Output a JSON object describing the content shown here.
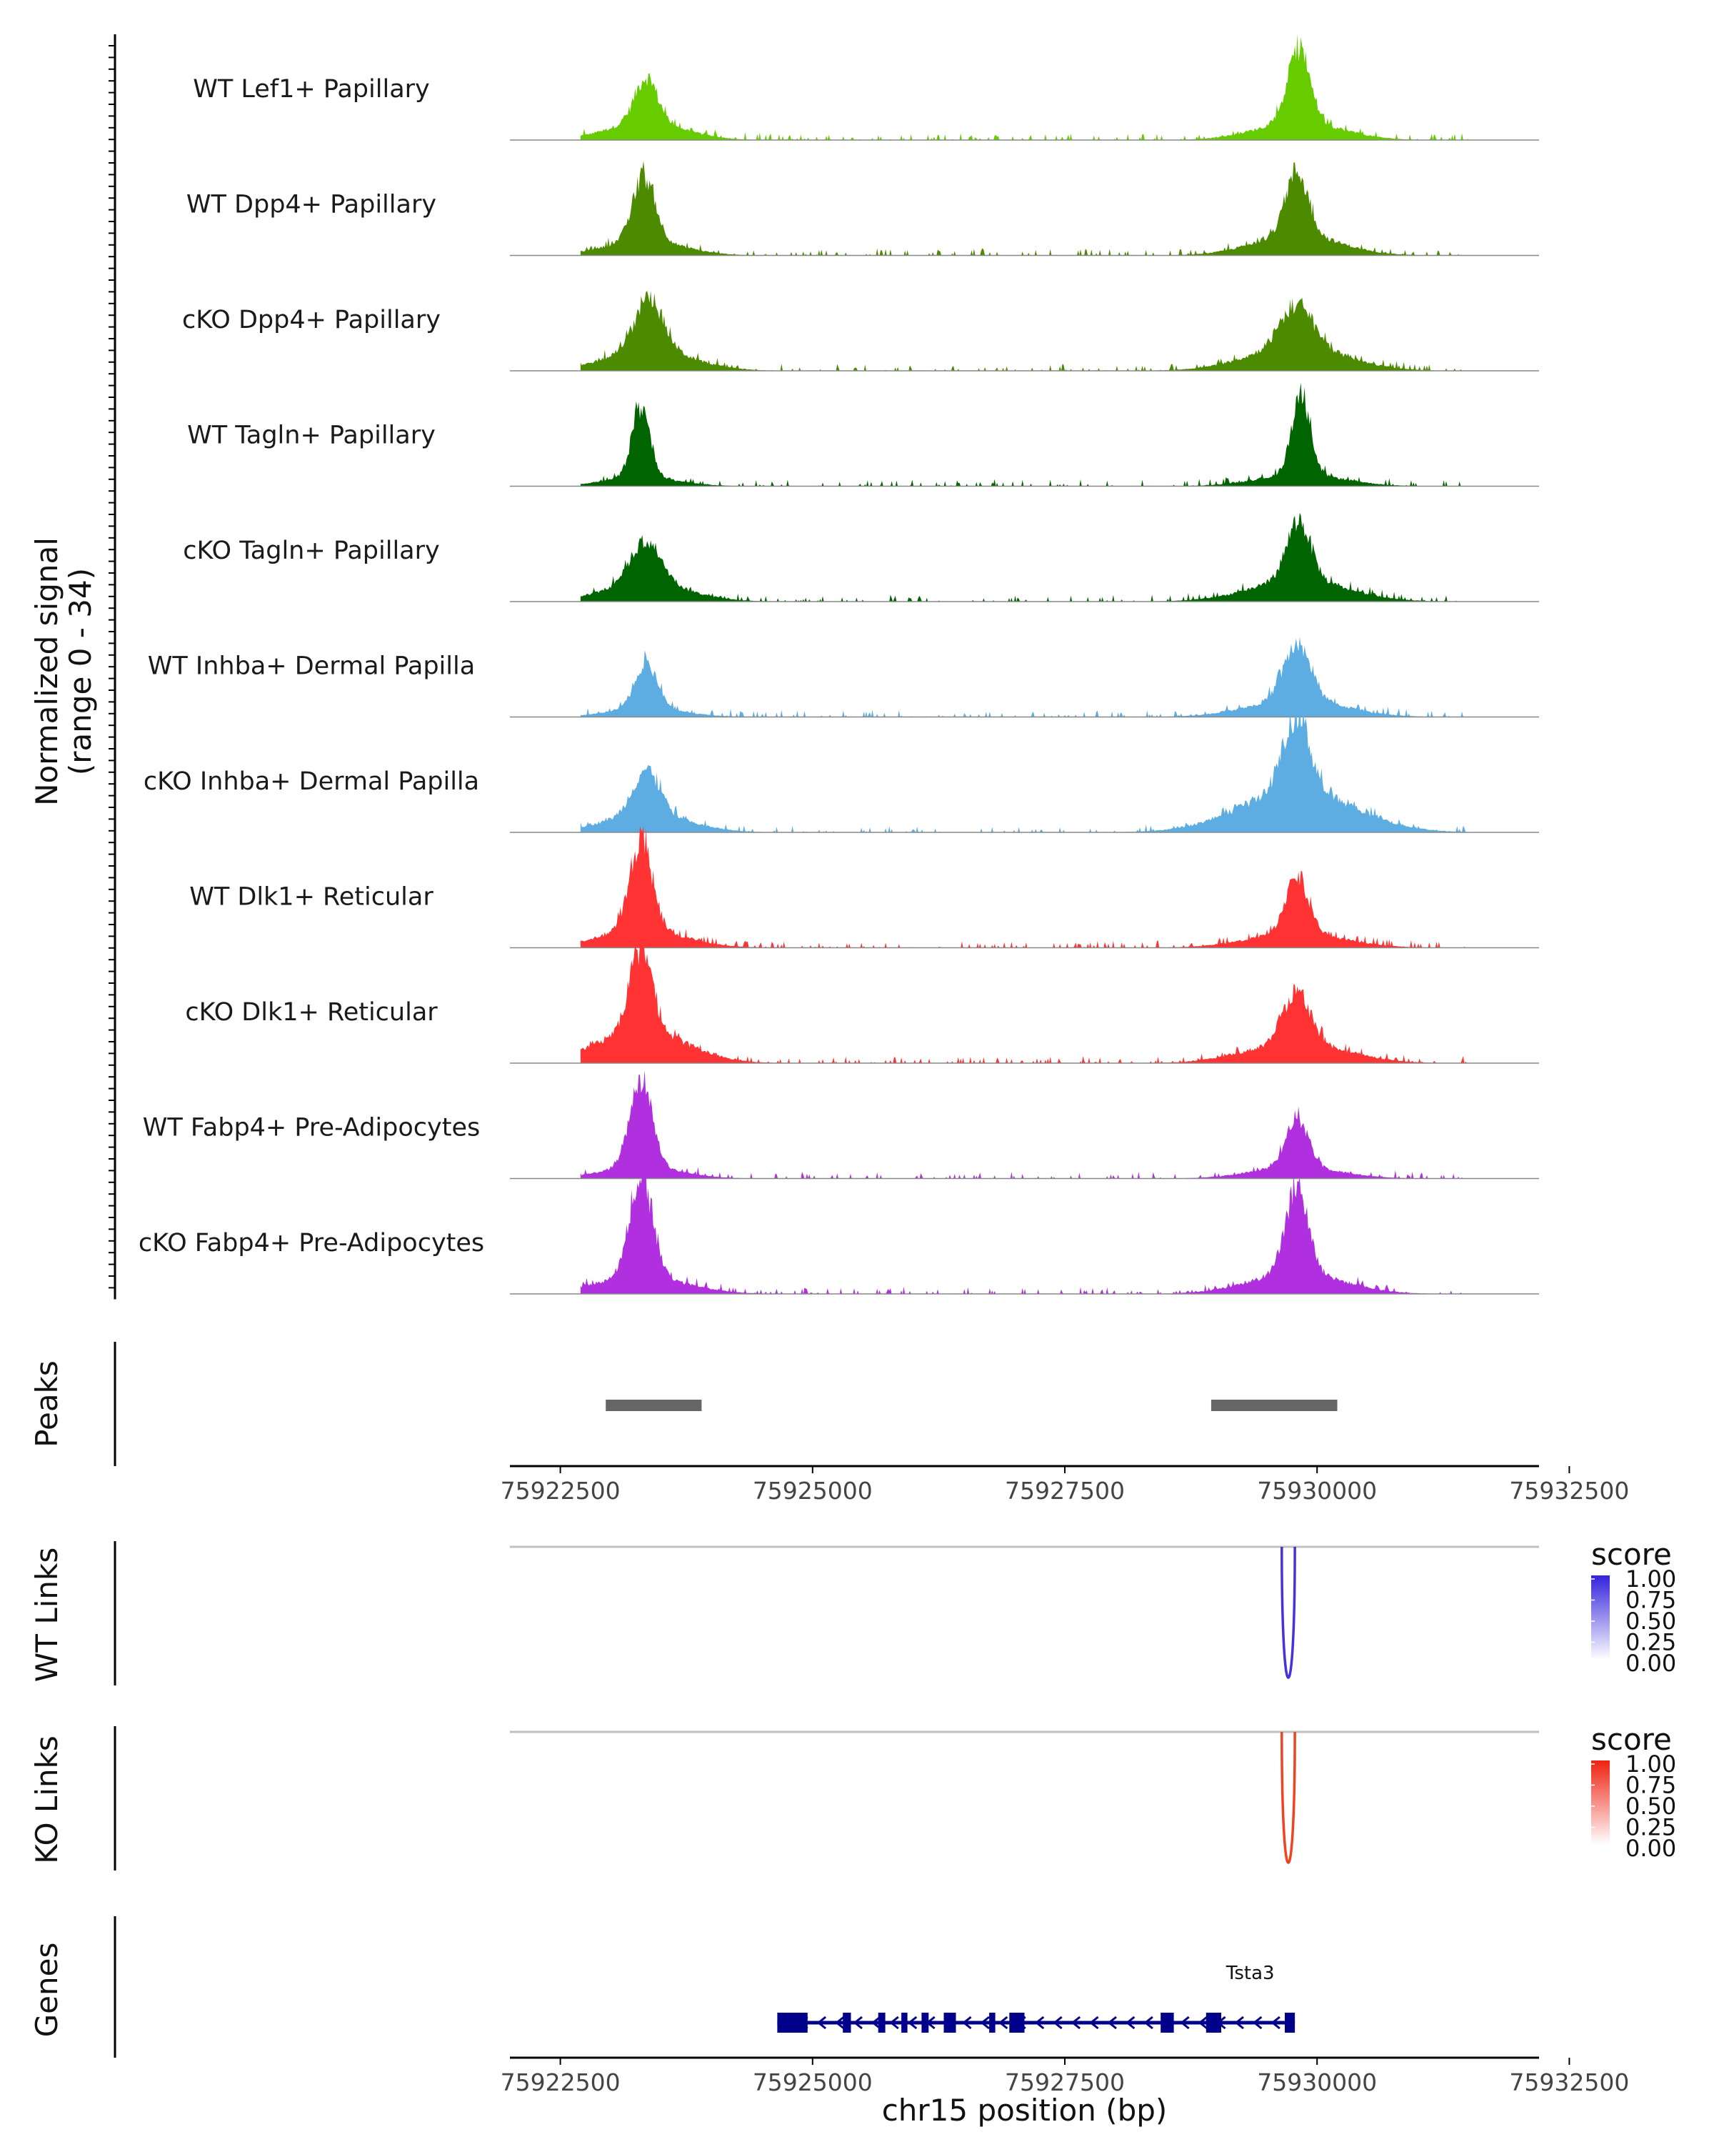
{
  "chart_data": {
    "type": "area",
    "title": "",
    "y_panel_label": [
      "Normalized signal",
      "(range 0 - 34)"
    ],
    "y_range": [
      0,
      34
    ],
    "x_range": [
      75922000,
      75932200
    ],
    "xlabel": "chr15 position (bp)",
    "x_ticks": [
      75922500,
      75925000,
      75927500,
      75930000,
      75932500
    ],
    "x_tick_labels": [
      "75922500",
      "75925000",
      "75927500",
      "75930000",
      "75932500"
    ],
    "tracks": [
      {
        "name": "WT Lef1+ Papillary",
        "color": "#66cc00",
        "peaks": [
          {
            "pos": 75923350,
            "height": 15,
            "width": 110,
            "base": 6,
            "base_width": 380
          },
          {
            "pos": 75929820,
            "height": 24,
            "width": 110,
            "base": 6,
            "base_width": 420
          }
        ]
      },
      {
        "name": "WT Dpp4+ Papillary",
        "color": "#4c8a00",
        "peaks": [
          {
            "pos": 75923330,
            "height": 21,
            "width": 110,
            "base": 5,
            "base_width": 380
          },
          {
            "pos": 75929800,
            "height": 21,
            "width": 110,
            "base": 7,
            "base_width": 420
          }
        ]
      },
      {
        "name": "cKO Dpp4+ Papillary",
        "color": "#4c8a00",
        "peaks": [
          {
            "pos": 75923380,
            "height": 17,
            "width": 140,
            "base": 7,
            "base_width": 420
          },
          {
            "pos": 75929800,
            "height": 14,
            "width": 160,
            "base": 8,
            "base_width": 480
          }
        ]
      },
      {
        "name": "WT Tagln+ Papillary",
        "color": "#006400",
        "peaks": [
          {
            "pos": 75923300,
            "height": 23,
            "width": 90,
            "base": 3,
            "base_width": 360
          },
          {
            "pos": 75929840,
            "height": 27,
            "width": 90,
            "base": 4,
            "base_width": 420
          }
        ]
      },
      {
        "name": "cKO Tagln+ Papillary",
        "color": "#006400",
        "peaks": [
          {
            "pos": 75923350,
            "height": 14,
            "width": 150,
            "base": 6,
            "base_width": 420
          },
          {
            "pos": 75929820,
            "height": 20,
            "width": 120,
            "base": 7,
            "base_width": 480
          }
        ]
      },
      {
        "name": "WT Inhba+ Dermal Papilla",
        "color": "#5dade2",
        "peaks": [
          {
            "pos": 75923350,
            "height": 15,
            "width": 110,
            "base": 3,
            "base_width": 360
          },
          {
            "pos": 75929800,
            "height": 18,
            "width": 130,
            "base": 6,
            "base_width": 460
          }
        ]
      },
      {
        "name": "cKO Inhba+ Dermal Papilla",
        "color": "#5dade2",
        "peaks": [
          {
            "pos": 75923350,
            "height": 15,
            "width": 130,
            "base": 6,
            "base_width": 420
          },
          {
            "pos": 75929800,
            "height": 25,
            "width": 130,
            "base": 14,
            "base_width": 560
          }
        ]
      },
      {
        "name": "WT Dlk1+ Reticular",
        "color": "#ff3333",
        "peaks": [
          {
            "pos": 75923300,
            "height": 30,
            "width": 110,
            "base": 6,
            "base_width": 420
          },
          {
            "pos": 75929800,
            "height": 19,
            "width": 110,
            "base": 5,
            "base_width": 460
          }
        ]
      },
      {
        "name": "cKO Dlk1+ Reticular",
        "color": "#ff3333",
        "peaks": [
          {
            "pos": 75923300,
            "height": 28,
            "width": 110,
            "base": 11,
            "base_width": 440
          },
          {
            "pos": 75929800,
            "height": 17,
            "width": 130,
            "base": 7,
            "base_width": 480
          }
        ]
      },
      {
        "name": "WT Fabp4+ Pre-Adipocytes",
        "color": "#b030e0",
        "peaks": [
          {
            "pos": 75923300,
            "height": 29,
            "width": 110,
            "base": 4,
            "base_width": 380
          },
          {
            "pos": 75929800,
            "height": 16,
            "width": 110,
            "base": 4,
            "base_width": 420
          }
        ]
      },
      {
        "name": "cKO Fabp4+ Pre-Adipocytes",
        "color": "#b030e0",
        "peaks": [
          {
            "pos": 75923300,
            "height": 34,
            "width": 110,
            "base": 6,
            "base_width": 440
          },
          {
            "pos": 75929800,
            "height": 29,
            "width": 110,
            "base": 7,
            "base_width": 460
          }
        ]
      }
    ],
    "peaks_track": {
      "label": "Peaks",
      "regions": [
        [
          75922950,
          75923900
        ],
        [
          75928950,
          75930200
        ]
      ]
    },
    "links": [
      {
        "label": "WT Links",
        "color": "#4433dd",
        "from": 75929650,
        "to": 75929780,
        "score": 1.0,
        "legend_title": "score",
        "legend_ticks": [
          "1.00",
          "0.75",
          "0.50",
          "0.25",
          "0.00"
        ],
        "legend_colors": [
          "#ffffff",
          "#3322dd"
        ]
      },
      {
        "label": "KO Links",
        "color": "#ee4422",
        "from": 75929650,
        "to": 75929780,
        "score": 1.0,
        "legend_title": "score",
        "legend_ticks": [
          "1.00",
          "0.75",
          "0.50",
          "0.25",
          "0.00"
        ],
        "legend_colors": [
          "#ffffff",
          "#ee2211"
        ]
      }
    ],
    "genes_track": {
      "label": "Genes",
      "color": "#00008b",
      "genes": [
        {
          "name": "Tsta3",
          "start": 75924650,
          "end": 75929780,
          "strand": "-",
          "exons": [
            [
              75924650,
              75924950
            ],
            [
              75925300,
              75925380
            ],
            [
              75925650,
              75925720
            ],
            [
              75925880,
              75925940
            ],
            [
              75926080,
              75926150
            ],
            [
              75926300,
              75926420
            ],
            [
              75926750,
              75926810
            ],
            [
              75926950,
              75927100
            ],
            [
              75928450,
              75928580
            ],
            [
              75928900,
              75929050
            ],
            [
              75929680,
              75929780
            ]
          ]
        }
      ]
    }
  }
}
